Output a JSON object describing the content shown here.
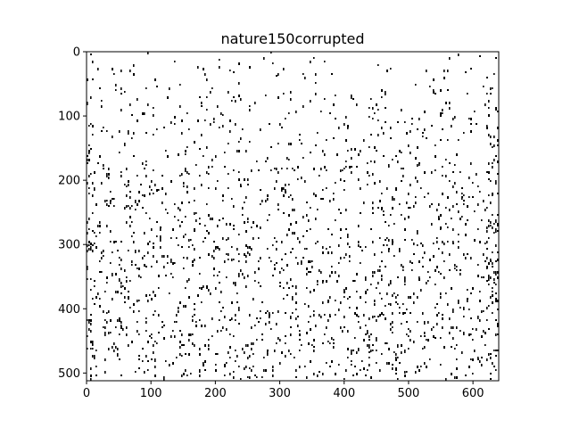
{
  "chart_data": {
    "type": "heatmap",
    "title": "nature150corrupted",
    "xlabel": "",
    "ylabel": "",
    "image_width": 640,
    "image_height": 512,
    "xlim": [
      0,
      640
    ],
    "ylim": [
      512,
      0
    ],
    "x_ticks": [
      "0",
      "100",
      "200",
      "300",
      "400",
      "500",
      "600"
    ],
    "y_ticks": [
      "0",
      "100",
      "200",
      "300",
      "400",
      "500"
    ],
    "colormap": "binary",
    "background_color": "#ffffff",
    "pixel_color": "#000000",
    "grid": false,
    "legend": "none",
    "description_values": {
      "dot_density_top": 0.01,
      "dot_density_bottom": 0.05
    }
  }
}
